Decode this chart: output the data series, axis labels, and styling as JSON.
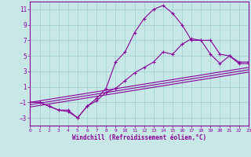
{
  "xlabel": "Windchill (Refroidissement éolien,°C)",
  "bg": "#c8e8e8",
  "lc": "#880099",
  "gc": "#99cccc",
  "xlim": [
    0,
    23
  ],
  "ylim": [
    -4,
    12
  ],
  "xticks": [
    0,
    1,
    2,
    3,
    4,
    5,
    6,
    7,
    8,
    9,
    10,
    11,
    12,
    13,
    14,
    15,
    16,
    17,
    18,
    19,
    20,
    21,
    22,
    23
  ],
  "yticks": [
    -3,
    -1,
    1,
    3,
    5,
    7,
    9,
    11
  ],
  "curve1_x": [
    0,
    1,
    2,
    3,
    4,
    5,
    6,
    7,
    8,
    9,
    10,
    11,
    12,
    13,
    14,
    15,
    16,
    17,
    18,
    19,
    20,
    21,
    22,
    23
  ],
  "curve1_y": [
    -1,
    -1,
    -1.5,
    -2.0,
    -2.0,
    -3.0,
    -1.5,
    -0.5,
    0.8,
    4.2,
    5.5,
    8.0,
    9.8,
    11.0,
    11.5,
    10.5,
    9.0,
    7.0,
    7.0,
    5.2,
    4.0,
    5.0,
    4.0,
    4.0
  ],
  "line2_x": [
    0,
    1,
    2,
    3,
    4,
    5,
    6,
    7,
    8,
    9,
    10,
    11,
    12,
    13,
    14,
    15,
    16,
    17,
    18,
    19,
    20,
    21,
    22,
    23
  ],
  "line2_y": [
    -1,
    -1,
    -1.5,
    -2.0,
    -2.2,
    -3.0,
    -1.5,
    -0.8,
    0.3,
    0.8,
    1.8,
    2.8,
    3.5,
    4.2,
    5.5,
    5.2,
    6.5,
    7.2,
    7.0,
    7.0,
    5.2,
    5.0,
    4.2,
    4.2
  ],
  "line3_x": [
    0,
    23
  ],
  "line3_y": [
    -1.0,
    3.5
  ],
  "line4_x": [
    0,
    23
  ],
  "line4_y": [
    -1.3,
    3.2
  ],
  "line5_x": [
    0,
    23
  ],
  "line5_y": [
    -1.6,
    2.9
  ]
}
